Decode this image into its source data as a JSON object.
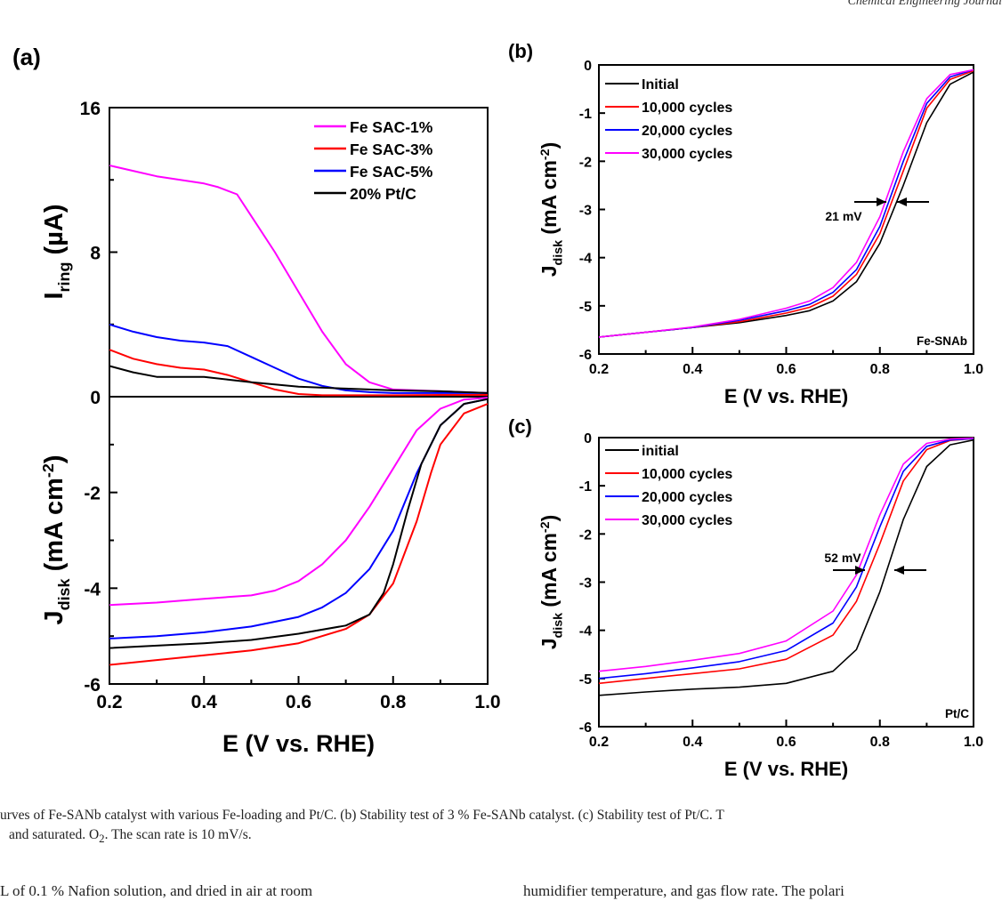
{
  "header": {
    "journal": "Chemical Engineering Journal"
  },
  "chart_data": [
    {
      "panel": "(a)",
      "type": "line",
      "stacked_subplots": true,
      "xlabel": "E (V vs. RHE)",
      "xlim": [
        0.2,
        1.0
      ],
      "xticks": [
        "0.2",
        "0.4",
        "0.6",
        "0.8",
        "1.0"
      ],
      "top": {
        "ylabel_main": "I",
        "ylabel_sub": "ring",
        "ylabel_unit": " (µA)",
        "ylim": [
          0,
          16
        ],
        "yticks": [
          "16",
          "8",
          "0"
        ],
        "legend_position": "top-right",
        "series": [
          {
            "name": "Fe SAC-1%",
            "color": "#ff00ff",
            "x": [
              0.2,
              0.25,
              0.3,
              0.35,
              0.4,
              0.43,
              0.47,
              0.5,
              0.55,
              0.6,
              0.65,
              0.7,
              0.75,
              0.8,
              0.9,
              1.0
            ],
            "y": [
              12.8,
              12.5,
              12.2,
              12.0,
              11.8,
              11.6,
              11.2,
              10.0,
              8.0,
              5.8,
              3.6,
              1.8,
              0.8,
              0.4,
              0.3,
              0.2
            ]
          },
          {
            "name": "Fe SAC-3%",
            "color": "#ff0000",
            "x": [
              0.2,
              0.25,
              0.3,
              0.35,
              0.4,
              0.45,
              0.5,
              0.55,
              0.6,
              0.65,
              0.7,
              0.8,
              0.9,
              1.0
            ],
            "y": [
              2.6,
              2.1,
              1.8,
              1.6,
              1.5,
              1.2,
              0.8,
              0.4,
              0.15,
              0.08,
              0.08,
              0.08,
              0.1,
              0.1
            ]
          },
          {
            "name": "Fe SAC-5%",
            "color": "#0000ff",
            "x": [
              0.2,
              0.25,
              0.3,
              0.35,
              0.4,
              0.45,
              0.5,
              0.55,
              0.6,
              0.65,
              0.7,
              0.75,
              0.8,
              0.9,
              1.0
            ],
            "y": [
              4.0,
              3.6,
              3.3,
              3.1,
              3.0,
              2.8,
              2.2,
              1.6,
              1.0,
              0.6,
              0.35,
              0.25,
              0.2,
              0.2,
              0.2
            ]
          },
          {
            "name": "20% Pt/C",
            "color": "#000000",
            "x": [
              0.2,
              0.25,
              0.3,
              0.35,
              0.4,
              0.45,
              0.5,
              0.6,
              0.7,
              0.8,
              0.9,
              1.0
            ],
            "y": [
              1.7,
              1.35,
              1.1,
              1.1,
              1.1,
              0.95,
              0.8,
              0.55,
              0.45,
              0.35,
              0.3,
              0.2
            ]
          }
        ]
      },
      "bottom": {
        "ylabel_main": "J",
        "ylabel_sub": "disk",
        "ylabel_unit": " (mA cm",
        "ylim": [
          -6,
          0
        ],
        "yticks": [
          "0",
          "-2",
          "-4",
          "-6"
        ],
        "series": [
          {
            "name": "Fe SAC-1%",
            "color": "#ff00ff",
            "x": [
              0.2,
              0.3,
              0.4,
              0.5,
              0.55,
              0.6,
              0.65,
              0.7,
              0.75,
              0.8,
              0.85,
              0.9,
              0.95,
              1.0
            ],
            "y": [
              -4.35,
              -4.3,
              -4.22,
              -4.15,
              -4.05,
              -3.85,
              -3.5,
              -3.0,
              -2.3,
              -1.5,
              -0.7,
              -0.25,
              -0.06,
              -0.02
            ]
          },
          {
            "name": "Fe SAC-3%",
            "color": "#ff0000",
            "x": [
              0.2,
              0.3,
              0.4,
              0.5,
              0.6,
              0.7,
              0.75,
              0.8,
              0.85,
              0.88,
              0.9,
              0.95,
              1.0
            ],
            "y": [
              -5.6,
              -5.5,
              -5.4,
              -5.3,
              -5.15,
              -4.85,
              -4.55,
              -3.9,
              -2.6,
              -1.6,
              -1.0,
              -0.35,
              -0.15
            ]
          },
          {
            "name": "Fe SAC-5%",
            "color": "#0000ff",
            "x": [
              0.2,
              0.3,
              0.4,
              0.5,
              0.6,
              0.65,
              0.7,
              0.75,
              0.8,
              0.85,
              0.9,
              0.95,
              1.0
            ],
            "y": [
              -5.05,
              -5.0,
              -4.92,
              -4.8,
              -4.6,
              -4.4,
              -4.1,
              -3.6,
              -2.8,
              -1.6,
              -0.6,
              -0.15,
              -0.05
            ]
          },
          {
            "name": "20% Pt/C",
            "color": "#000000",
            "x": [
              0.2,
              0.3,
              0.4,
              0.5,
              0.6,
              0.7,
              0.75,
              0.78,
              0.8,
              0.83,
              0.86,
              0.9,
              0.95,
              1.0
            ],
            "y": [
              -5.25,
              -5.2,
              -5.15,
              -5.08,
              -4.95,
              -4.78,
              -4.55,
              -4.1,
              -3.5,
              -2.4,
              -1.4,
              -0.6,
              -0.15,
              -0.05
            ]
          }
        ]
      }
    },
    {
      "panel": "(b)",
      "type": "line",
      "xlabel": "E (V vs. RHE)",
      "ylabel_main": "J",
      "ylabel_sub": "disk",
      "ylabel_unit": " (mA cm",
      "xlim": [
        0.2,
        1.0
      ],
      "ylim": [
        -6,
        0
      ],
      "xticks": [
        "0.2",
        "0.4",
        "0.6",
        "0.8",
        "1.0"
      ],
      "yticks": [
        "0",
        "-1",
        "-2",
        "-3",
        "-4",
        "-5",
        "-6"
      ],
      "legend_position": "top-left",
      "annotation": "21 mV",
      "sample_label": "Fe-SNAb",
      "series": [
        {
          "name": "Initial",
          "color": "#000000",
          "x": [
            0.2,
            0.3,
            0.4,
            0.5,
            0.6,
            0.65,
            0.7,
            0.75,
            0.8,
            0.85,
            0.9,
            0.95,
            1.0
          ],
          "y": [
            -5.65,
            -5.55,
            -5.45,
            -5.35,
            -5.2,
            -5.1,
            -4.9,
            -4.5,
            -3.7,
            -2.5,
            -1.2,
            -0.4,
            -0.15
          ]
        },
        {
          "name": "10,000 cycles",
          "color": "#ff0000",
          "x": [
            0.2,
            0.3,
            0.4,
            0.5,
            0.6,
            0.65,
            0.7,
            0.75,
            0.8,
            0.85,
            0.9,
            0.95,
            1.0
          ],
          "y": [
            -5.65,
            -5.55,
            -5.45,
            -5.33,
            -5.15,
            -5.03,
            -4.8,
            -4.35,
            -3.5,
            -2.2,
            -0.9,
            -0.3,
            -0.12
          ]
        },
        {
          "name": "20,000 cycles",
          "color": "#0000ff",
          "x": [
            0.2,
            0.3,
            0.4,
            0.5,
            0.6,
            0.65,
            0.7,
            0.75,
            0.8,
            0.85,
            0.9,
            0.95,
            1.0
          ],
          "y": [
            -5.65,
            -5.55,
            -5.45,
            -5.3,
            -5.1,
            -4.97,
            -4.72,
            -4.25,
            -3.35,
            -2.0,
            -0.8,
            -0.25,
            -0.1
          ]
        },
        {
          "name": "30,000 cycles",
          "color": "#ff00ff",
          "x": [
            0.2,
            0.3,
            0.4,
            0.5,
            0.6,
            0.65,
            0.7,
            0.75,
            0.8,
            0.85,
            0.9,
            0.95,
            1.0
          ],
          "y": [
            -5.65,
            -5.55,
            -5.44,
            -5.28,
            -5.05,
            -4.9,
            -4.62,
            -4.1,
            -3.15,
            -1.8,
            -0.7,
            -0.2,
            -0.1
          ]
        }
      ]
    },
    {
      "panel": "(c)",
      "type": "line",
      "xlabel": "E (V vs. RHE)",
      "ylabel_main": "J",
      "ylabel_sub": "disk",
      "ylabel_unit": " (mA cm",
      "xlim": [
        0.2,
        1.0
      ],
      "ylim": [
        -6,
        0
      ],
      "xticks": [
        "0.2",
        "0.4",
        "0.6",
        "0.8",
        "1.0"
      ],
      "yticks": [
        "0",
        "-1",
        "-2",
        "-3",
        "-4",
        "-5",
        "-6"
      ],
      "legend_position": "top-left",
      "annotation": "52 mV",
      "sample_label": "Pt/C",
      "series": [
        {
          "name": "initial",
          "color": "#000000",
          "x": [
            0.2,
            0.3,
            0.4,
            0.5,
            0.6,
            0.7,
            0.75,
            0.8,
            0.85,
            0.9,
            0.95,
            1.0
          ],
          "y": [
            -5.35,
            -5.28,
            -5.22,
            -5.18,
            -5.1,
            -4.85,
            -4.4,
            -3.2,
            -1.7,
            -0.6,
            -0.15,
            -0.05
          ]
        },
        {
          "name": "10,000 cycles",
          "color": "#ff0000",
          "x": [
            0.2,
            0.3,
            0.4,
            0.5,
            0.6,
            0.7,
            0.75,
            0.8,
            0.85,
            0.9,
            0.95,
            1.0
          ],
          "y": [
            -5.1,
            -5.0,
            -4.9,
            -4.8,
            -4.6,
            -4.1,
            -3.4,
            -2.2,
            -0.9,
            -0.25,
            -0.06,
            -0.02
          ]
        },
        {
          "name": "20,000 cycles",
          "color": "#0000ff",
          "x": [
            0.2,
            0.3,
            0.4,
            0.5,
            0.6,
            0.7,
            0.75,
            0.8,
            0.85,
            0.9,
            0.95,
            1.0
          ],
          "y": [
            -5.0,
            -4.9,
            -4.78,
            -4.65,
            -4.42,
            -3.85,
            -3.1,
            -1.85,
            -0.7,
            -0.18,
            -0.05,
            -0.02
          ]
        },
        {
          "name": "30,000 cycles",
          "color": "#ff00ff",
          "x": [
            0.2,
            0.3,
            0.4,
            0.5,
            0.6,
            0.7,
            0.75,
            0.8,
            0.85,
            0.9,
            0.95,
            1.0
          ],
          "y": [
            -4.85,
            -4.75,
            -4.62,
            -4.48,
            -4.22,
            -3.6,
            -2.85,
            -1.6,
            -0.55,
            -0.12,
            -0.03,
            -0.01
          ]
        }
      ]
    }
  ],
  "caption": {
    "line1": "urves of Fe-SANb catalyst with various Fe-loading and Pt/C. (b) Stability test of 3 % Fe-SANb catalyst. (c) Stability test of Pt/C. T",
    "line2_pre": "and saturated. O",
    "line2_sub": "2",
    "line2_post": ". The scan rate is 10 mV/s."
  },
  "body": {
    "left": "L of 0.1 % Nafion solution, and dried in air at room",
    "right": "humidifier temperature, and gas flow rate. The polari"
  }
}
